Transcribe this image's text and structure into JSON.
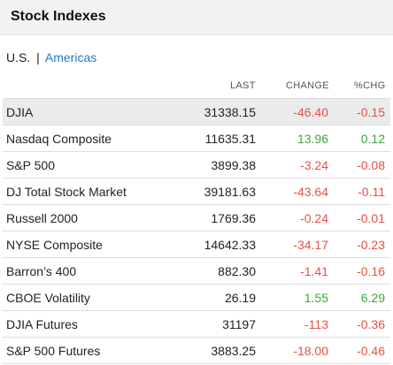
{
  "header": {
    "title": "Stock Indexes"
  },
  "tabs": {
    "us": "U.S.",
    "separator": "|",
    "americas": "Americas"
  },
  "columns": {
    "last": "LAST",
    "change": "CHANGE",
    "pct_change": "%CHG"
  },
  "colors": {
    "negative": "#e5504a",
    "positive": "#3ca83a",
    "link": "#1f7bc1"
  },
  "rows": [
    {
      "name": "DJIA",
      "last": "31338.15",
      "change": "-46.40",
      "pct": "-0.15",
      "dir": "neg"
    },
    {
      "name": "Nasdaq Composite",
      "last": "11635.31",
      "change": "13.96",
      "pct": "0.12",
      "dir": "pos"
    },
    {
      "name": "S&P 500",
      "last": "3899.38",
      "change": "-3.24",
      "pct": "-0.08",
      "dir": "neg"
    },
    {
      "name": "DJ Total Stock Market",
      "last": "39181.63",
      "change": "-43.64",
      "pct": "-0.11",
      "dir": "neg"
    },
    {
      "name": "Russell 2000",
      "last": "1769.36",
      "change": "-0.24",
      "pct": "-0.01",
      "dir": "neg"
    },
    {
      "name": "NYSE Composite",
      "last": "14642.33",
      "change": "-34.17",
      "pct": "-0.23",
      "dir": "neg"
    },
    {
      "name": "Barron’s 400",
      "last": "882.30",
      "change": "-1.41",
      "pct": "-0.16",
      "dir": "neg"
    },
    {
      "name": "CBOE Volatility",
      "last": "26.19",
      "change": "1.55",
      "pct": "6.29",
      "dir": "pos"
    },
    {
      "name": "DJIA Futures",
      "last": "31197",
      "change": "-113",
      "pct": "-0.36",
      "dir": "neg"
    },
    {
      "name": "S&P 500 Futures",
      "last": "3883.25",
      "change": "-18.00",
      "pct": "-0.46",
      "dir": "neg"
    }
  ]
}
